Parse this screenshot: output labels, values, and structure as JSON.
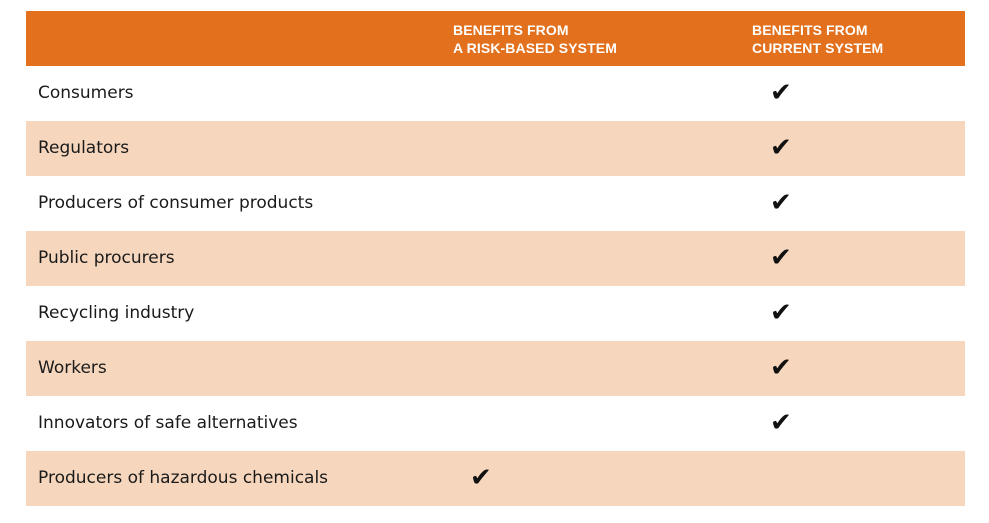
{
  "colors": {
    "header_bg": "#e2701c",
    "row_alt_bg": "#f6d7bd",
    "row_bg": "#ffffff"
  },
  "check_icon": "check-icon",
  "check_glyph": "✔",
  "header": {
    "col_risk": "BENEFITS FROM\nA RISK-BASED SYSTEM",
    "col_current": "BENEFITS FROM\nCURRENT SYSTEM"
  },
  "rows": [
    {
      "label": "Consumers",
      "risk_based": false,
      "current": true
    },
    {
      "label": "Regulators",
      "risk_based": false,
      "current": true
    },
    {
      "label": "Producers of consumer products",
      "risk_based": false,
      "current": true
    },
    {
      "label": "Public procurers",
      "risk_based": false,
      "current": true
    },
    {
      "label": "Recycling industry",
      "risk_based": false,
      "current": true
    },
    {
      "label": "Workers",
      "risk_based": false,
      "current": true
    },
    {
      "label": "Innovators of safe alternatives",
      "risk_based": false,
      "current": true
    },
    {
      "label": "Producers of hazardous chemicals",
      "risk_based": true,
      "current": false
    }
  ]
}
